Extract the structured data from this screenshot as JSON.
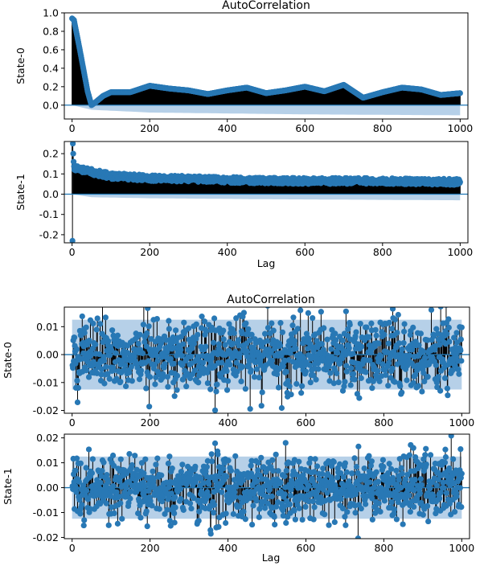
{
  "figures": [
    {
      "title": "AutoCorrelation",
      "xlabel": "Lag"
    },
    {
      "title": "AutoCorrelation",
      "xlabel": "Lag"
    }
  ],
  "colors": {
    "marker": "#2878b5",
    "stem": "#000000",
    "band": "#aecbe6",
    "zero_line": "#1f77b4"
  },
  "chart_data": [
    {
      "type": "scatter",
      "subtype": "stem-autocorrelation",
      "ylabel": "State-0",
      "xlim": [
        -20,
        1020
      ],
      "ylim": [
        -0.15,
        1.0
      ],
      "xticks": [
        0,
        200,
        400,
        600,
        800,
        1000
      ],
      "yticks": [
        0.0,
        0.2,
        0.4,
        0.6,
        0.8,
        1.0
      ],
      "ytick_labels": [
        "0.0",
        "0.2",
        "0.4",
        "0.6",
        "0.8",
        "1.0"
      ],
      "lag_max": 1000,
      "profile": [
        [
          0,
          0.94
        ],
        [
          5,
          0.92
        ],
        [
          20,
          0.6
        ],
        [
          40,
          0.15
        ],
        [
          50,
          0.0
        ],
        [
          60,
          0.03
        ],
        [
          80,
          0.1
        ],
        [
          100,
          0.14
        ],
        [
          150,
          0.14
        ],
        [
          200,
          0.21
        ],
        [
          250,
          0.18
        ],
        [
          300,
          0.16
        ],
        [
          350,
          0.12
        ],
        [
          400,
          0.16
        ],
        [
          450,
          0.19
        ],
        [
          500,
          0.13
        ],
        [
          550,
          0.16
        ],
        [
          600,
          0.2
        ],
        [
          650,
          0.15
        ],
        [
          700,
          0.22
        ],
        [
          750,
          0.08
        ],
        [
          800,
          0.14
        ],
        [
          850,
          0.19
        ],
        [
          900,
          0.17
        ],
        [
          950,
          0.11
        ],
        [
          1000,
          0.13
        ]
      ],
      "confidence_band": [
        [
          0,
          0.0
        ],
        [
          50,
          -0.05
        ],
        [
          200,
          -0.08
        ],
        [
          400,
          -0.09
        ],
        [
          600,
          -0.1
        ],
        [
          1000,
          -0.11
        ]
      ]
    },
    {
      "type": "scatter",
      "subtype": "stem-autocorrelation",
      "ylabel": "State-1",
      "xlim": [
        -20,
        1020
      ],
      "ylim": [
        -0.24,
        0.26
      ],
      "xticks": [
        0,
        200,
        400,
        600,
        800,
        1000
      ],
      "yticks": [
        -0.2,
        -0.1,
        0.0,
        0.1,
        0.2
      ],
      "ytick_labels": [
        "-0.2",
        "-0.1",
        "0.0",
        "0.1",
        "0.2"
      ],
      "lag_max": 1000,
      "outliers": [
        [
          1,
          -0.23
        ],
        [
          2,
          0.25
        ],
        [
          3,
          0.2
        ],
        [
          4,
          0.16
        ]
      ],
      "profile": [
        [
          5,
          0.13
        ],
        [
          50,
          0.11
        ],
        [
          100,
          0.09
        ],
        [
          200,
          0.08
        ],
        [
          400,
          0.07
        ],
        [
          600,
          0.065
        ],
        [
          800,
          0.065
        ],
        [
          1000,
          0.06
        ]
      ],
      "confidence_band": [
        [
          0,
          0.0
        ],
        [
          50,
          -0.015
        ],
        [
          200,
          -0.02
        ],
        [
          500,
          -0.025
        ],
        [
          1000,
          -0.03
        ]
      ]
    },
    {
      "type": "scatter",
      "subtype": "stem-autocorrelation",
      "ylabel": "State-0",
      "xlim": [
        -20,
        1020
      ],
      "ylim": [
        -0.021,
        0.017
      ],
      "xticks": [
        0,
        200,
        400,
        600,
        800,
        1000
      ],
      "yticks": [
        -0.02,
        -0.01,
        0.0,
        0.01
      ],
      "ytick_labels": [
        "-0.02",
        "-0.01",
        "0.00",
        "0.01"
      ],
      "lag_max": 1000,
      "noise_std": 0.0065,
      "confidence_band_halfwidth": 0.0125
    },
    {
      "type": "scatter",
      "subtype": "stem-autocorrelation",
      "ylabel": "State-1",
      "xlim": [
        -20,
        1020
      ],
      "ylim": [
        -0.0205,
        0.0215
      ],
      "xticks": [
        0,
        200,
        400,
        600,
        800,
        1000
      ],
      "yticks": [
        -0.02,
        -0.01,
        0.0,
        0.01,
        0.02
      ],
      "ytick_labels": [
        "-0.02",
        "-0.01",
        "0.00",
        "0.01",
        "0.02"
      ],
      "lag_max": 1000,
      "noise_std": 0.0065,
      "confidence_band_halfwidth": 0.0125
    }
  ]
}
